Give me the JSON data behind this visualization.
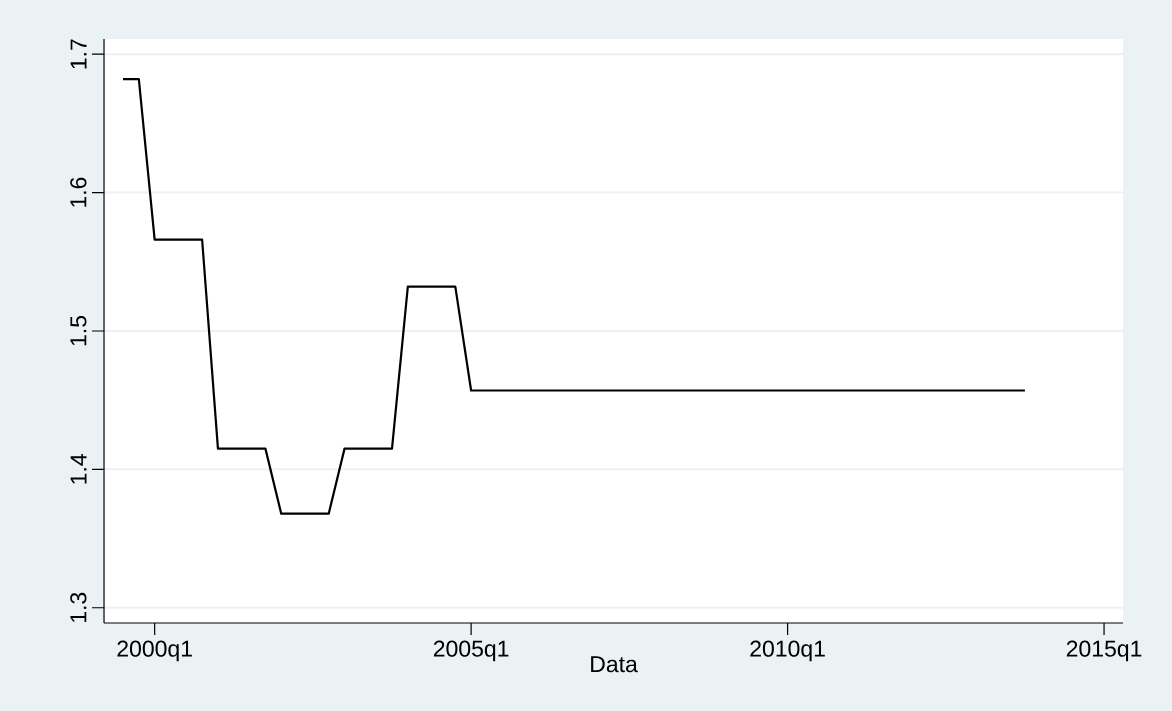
{
  "chart_data": {
    "type": "line",
    "xlabel": "Data",
    "categories": [
      null,
      null,
      "2000q1",
      null,
      null,
      null,
      null,
      null,
      null,
      null,
      null,
      null,
      null,
      null,
      null,
      null,
      null,
      null,
      null,
      null,
      null,
      null,
      "2005q1",
      null,
      null,
      null,
      null,
      null,
      null,
      null,
      null,
      null,
      null,
      null,
      null,
      null,
      null,
      null,
      null,
      null,
      null,
      null,
      "2010q1",
      null,
      null,
      null,
      null,
      null,
      null,
      null,
      null,
      null,
      null,
      null,
      null,
      null,
      null,
      null,
      null,
      null,
      null,
      null,
      "2015q1"
    ],
    "values": [
      1.682,
      1.682,
      1.566,
      1.566,
      1.566,
      1.566,
      1.415,
      1.415,
      1.415,
      1.415,
      1.368,
      1.368,
      1.368,
      1.368,
      1.415,
      1.415,
      1.415,
      1.415,
      1.532,
      1.532,
      1.532,
      1.532,
      1.457,
      1.457,
      1.457,
      1.457,
      1.457,
      1.457,
      1.457,
      1.457,
      1.457,
      1.457,
      1.457,
      1.457,
      1.457,
      1.457,
      1.457,
      1.457,
      1.457,
      1.457,
      1.457,
      1.457,
      1.457,
      1.457,
      1.457,
      1.457,
      1.457,
      1.457,
      1.457,
      1.457,
      1.457,
      1.457,
      1.457,
      1.457,
      1.457,
      1.457,
      1.457,
      1.457,
      null,
      null,
      null,
      null,
      null
    ],
    "color": "#000000",
    "ylim": [
      1.289,
      1.711
    ],
    "yticks": [
      1.3,
      1.4,
      1.5,
      1.6,
      1.7
    ],
    "grid": "y",
    "marker": "none",
    "line_style": "solid"
  }
}
